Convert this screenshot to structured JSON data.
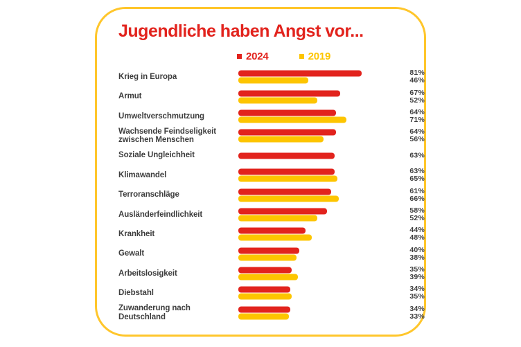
{
  "title": "Jugendliche haben Angst vor...",
  "legend": {
    "items": [
      {
        "label": "2024",
        "color": "#e2231d"
      },
      {
        "label": "2019",
        "color": "#fdc500"
      }
    ]
  },
  "colors": {
    "red_2024": "#e2231d",
    "yellow_2019": "#fdc500",
    "card_border": "#ffc62b",
    "text_gray": "#3d3d3d",
    "background": "#ffffff"
  },
  "chart_data": {
    "type": "bar",
    "orientation": "horizontal",
    "title": "Jugendliche haben Angst vor...",
    "unit": "%",
    "xlim": [
      0,
      100
    ],
    "grid": false,
    "legend_position": "top",
    "categories": [
      "Krieg in Europa",
      "Armut",
      "Umweltverschmutzung",
      "Wachsende Feindseligkeit zwischen Menschen",
      "Soziale Ungleichheit",
      "Klimawandel",
      "Terroranschläge",
      "Ausländerfeindlichkeit",
      "Krankheit",
      "Gewalt",
      "Arbeitslosigkeit",
      "Diebstahl",
      "Zuwanderung nach Deutschland"
    ],
    "series": [
      {
        "name": "2024",
        "color": "#e2231d",
        "values": [
          81,
          67,
          64,
          64,
          63,
          63,
          61,
          58,
          44,
          40,
          35,
          34,
          34
        ]
      },
      {
        "name": "2019",
        "color": "#fdc500",
        "values": [
          46,
          52,
          71,
          56,
          null,
          65,
          66,
          52,
          48,
          38,
          39,
          35,
          33
        ]
      }
    ]
  }
}
